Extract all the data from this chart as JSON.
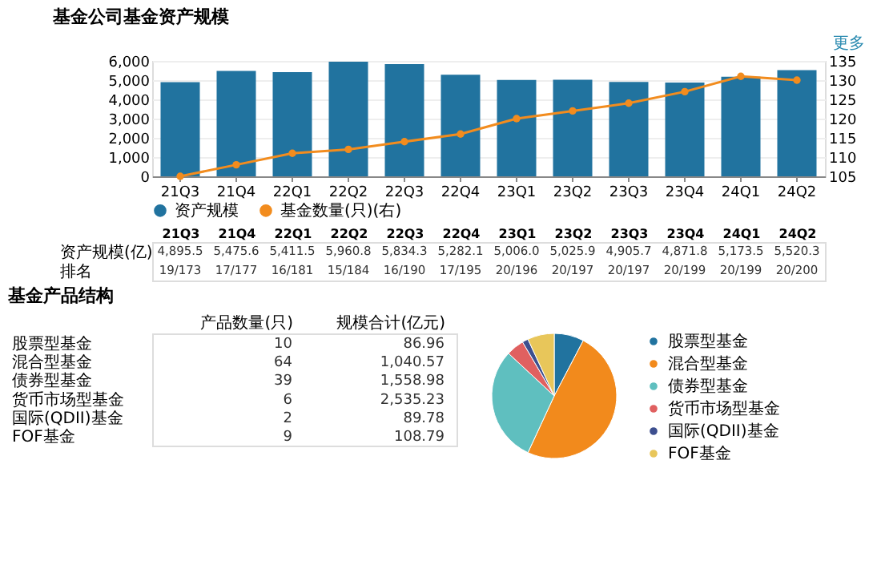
{
  "chart_data": [
    {
      "type": "bar",
      "title": "基金公司基金资产规模",
      "categories": [
        "21Q3",
        "21Q4",
        "22Q1",
        "22Q2",
        "22Q3",
        "22Q4",
        "23Q1",
        "23Q2",
        "23Q3",
        "23Q4",
        "24Q1",
        "24Q2"
      ],
      "series": [
        {
          "name": "资产规模",
          "color": "#21739f",
          "values": [
            4895.5,
            5475.6,
            5411.5,
            5960.8,
            5834.3,
            5282.1,
            5006.0,
            5025.9,
            4905.7,
            4871.8,
            5173.5,
            5520.3
          ],
          "value_labels": [
            "4,895.5",
            "5,475.6",
            "5,411.5",
            "5,960.8",
            "5,834.3",
            "5,282.1",
            "5,006.0",
            "5,025.9",
            "4,905.7",
            "4,871.8",
            "5,173.5",
            "5,520.3"
          ]
        },
        {
          "name": "基金数量(只)(右)",
          "type": "line",
          "axis": "y2",
          "color": "#f28c1e",
          "values": [
            105,
            108,
            111,
            112,
            114,
            116,
            120,
            122,
            124,
            127,
            131,
            130
          ]
        }
      ],
      "ylim": [
        0,
        6000
      ],
      "yticks": [
        0,
        {
          "value": 1000,
          "label": "1,000"
        },
        {
          "value": 2000,
          "label": "2,000"
        },
        {
          "value": 3000,
          "label": "3,000"
        },
        {
          "value": 4000,
          "label": "4,000"
        },
        {
          "value": 5000,
          "label": "5,000"
        },
        {
          "value": 6000,
          "label": "6,000"
        }
      ],
      "y2lim": [
        105,
        135
      ],
      "y2ticks": [
        105,
        110,
        115,
        120,
        125,
        130,
        135
      ],
      "grid": "y",
      "legend": "bottom",
      "marker": "circle",
      "line_style": "solid",
      "annotations": [
        "更多",
        "资产规模(亿)",
        "排名",
        "19/173",
        "17/177",
        "16/181",
        "15/184",
        "16/190",
        "17/195",
        "20/196",
        "20/197",
        "20/197",
        "20/199",
        "20/199",
        "20/200"
      ]
    },
    {
      "type": "other",
      "title": "基金产品结构",
      "categories": [
        "股票型基金",
        "混合型基金",
        "债券型基金",
        "货币市场型基金",
        "国际(QDII)基金",
        "FOF基金"
      ],
      "series": [
        {
          "name": "产品数量(只)",
          "values": [
            10,
            64,
            39,
            6,
            2,
            9
          ],
          "value_labels": [
            "10",
            "64",
            "39",
            "6",
            "2",
            "9"
          ]
        },
        {
          "name": "规模合计(亿元)",
          "values": [
            86.96,
            1040.57,
            1558.98,
            2535.23,
            89.78,
            108.79
          ],
          "value_labels": [
            "86.96",
            "1,040.57",
            "1,558.98",
            "2,535.23",
            "89.78",
            "108.79"
          ]
        }
      ]
    },
    {
      "type": "pie",
      "categories": [
        "股票型基金",
        "混合型基金",
        "债券型基金",
        "货币市场型基金",
        "国际(QDII)基金",
        "FOF基金"
      ],
      "values": [
        7.69,
        49.23,
        30.0,
        4.62,
        1.54,
        6.92
      ],
      "colors": [
        "#21739f",
        "#f28a1c",
        "#5fbfbf",
        "#e06060",
        "#3d4f8f",
        "#e8c65a"
      ],
      "legend": "right"
    }
  ]
}
